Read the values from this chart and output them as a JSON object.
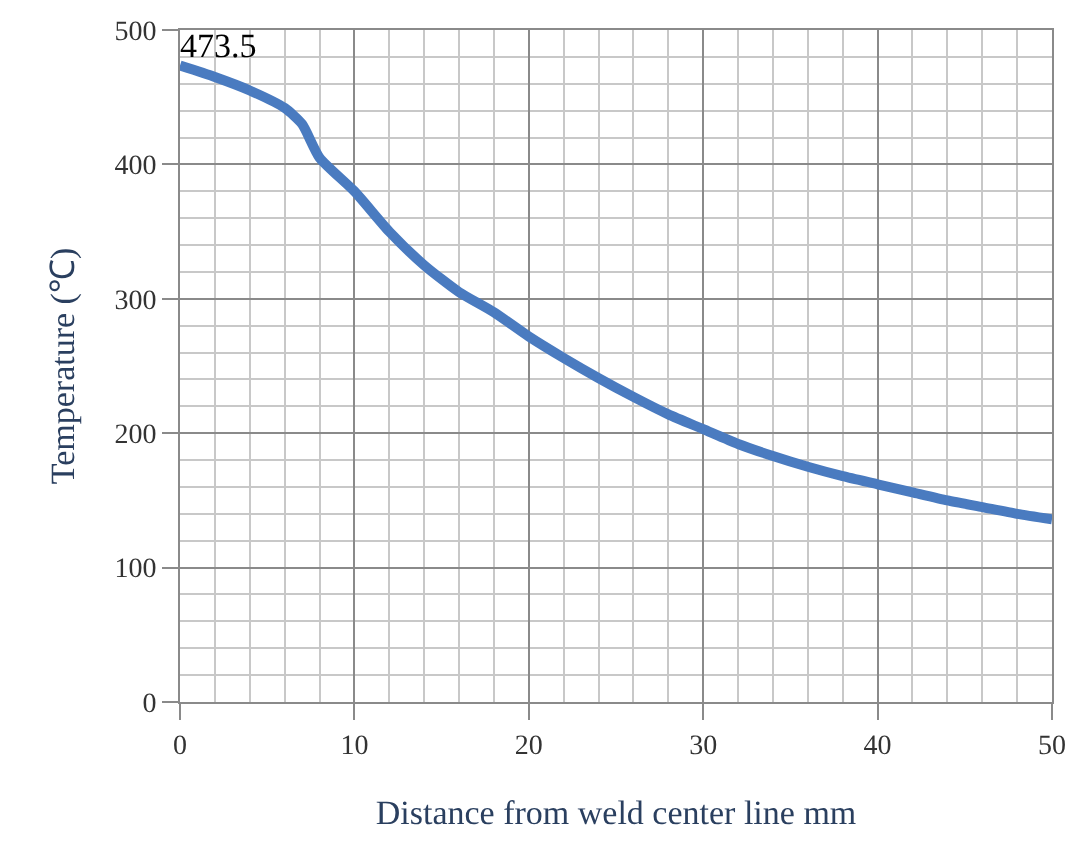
{
  "chart_data": {
    "type": "line",
    "xlabel": "Distance from weld center line mm",
    "ylabel": "Temperature (℃)",
    "x": [
      0,
      2,
      4,
      6,
      7,
      8,
      10,
      12,
      14,
      16,
      18,
      20,
      22,
      24,
      26,
      28,
      30,
      32,
      34,
      36,
      38,
      40,
      42,
      44,
      46,
      48,
      50
    ],
    "series": [
      {
        "color": "#4a7bc0",
        "values": [
          473.5,
          465,
          455,
          442,
          430,
          405,
          380,
          350,
          325,
          305,
          290,
          272,
          256,
          241,
          227,
          214,
          203,
          192,
          183,
          175,
          168,
          162,
          156,
          150,
          145,
          140,
          136
        ],
        "value_labels": [
          "473.5",
          null,
          null,
          null,
          null,
          null,
          null,
          null,
          null,
          null,
          null,
          null,
          null,
          null,
          null,
          null,
          null,
          null,
          null,
          null,
          null,
          null,
          null,
          null,
          null,
          null,
          null
        ]
      }
    ],
    "xlim": [
      0,
      50
    ],
    "ylim": [
      0,
      500
    ],
    "xticks": [
      0,
      {
        "value": 2,
        "label": null
      },
      {
        "value": 4,
        "label": null
      },
      {
        "value": 6,
        "label": null
      },
      {
        "value": 8,
        "label": null
      },
      10,
      {
        "value": 12,
        "label": null
      },
      {
        "value": 14,
        "label": null
      },
      {
        "value": 16,
        "label": null
      },
      {
        "value": 18,
        "label": null
      },
      20,
      {
        "value": 22,
        "label": null
      },
      {
        "value": 24,
        "label": null
      },
      {
        "value": 26,
        "label": null
      },
      {
        "value": 28,
        "label": null
      },
      30,
      {
        "value": 32,
        "label": null
      },
      {
        "value": 34,
        "label": null
      },
      {
        "value": 36,
        "label": null
      },
      {
        "value": 38,
        "label": null
      },
      40,
      {
        "value": 42,
        "label": null
      },
      {
        "value": 44,
        "label": null
      },
      {
        "value": 46,
        "label": null
      },
      {
        "value": 48,
        "label": null
      },
      50
    ],
    "yticks": [
      0,
      {
        "value": 20,
        "label": null
      },
      {
        "value": 40,
        "label": null
      },
      {
        "value": 60,
        "label": null
      },
      {
        "value": 80,
        "label": null
      },
      100,
      {
        "value": 120,
        "label": null
      },
      {
        "value": 140,
        "label": null
      },
      {
        "value": 160,
        "label": null
      },
      {
        "value": 180,
        "label": null
      },
      200,
      {
        "value": 220,
        "label": null
      },
      {
        "value": 240,
        "label": null
      },
      {
        "value": 260,
        "label": null
      },
      {
        "value": 280,
        "label": null
      },
      300,
      {
        "value": 320,
        "label": null
      },
      {
        "value": 340,
        "label": null
      },
      {
        "value": 360,
        "label": null
      },
      {
        "value": 380,
        "label": null
      },
      400,
      {
        "value": 420,
        "label": null
      },
      {
        "value": 440,
        "label": null
      },
      {
        "value": 460,
        "label": null
      },
      {
        "value": 480,
        "label": null
      },
      500
    ],
    "grid": true,
    "marker": "none",
    "line_style": "solid"
  }
}
